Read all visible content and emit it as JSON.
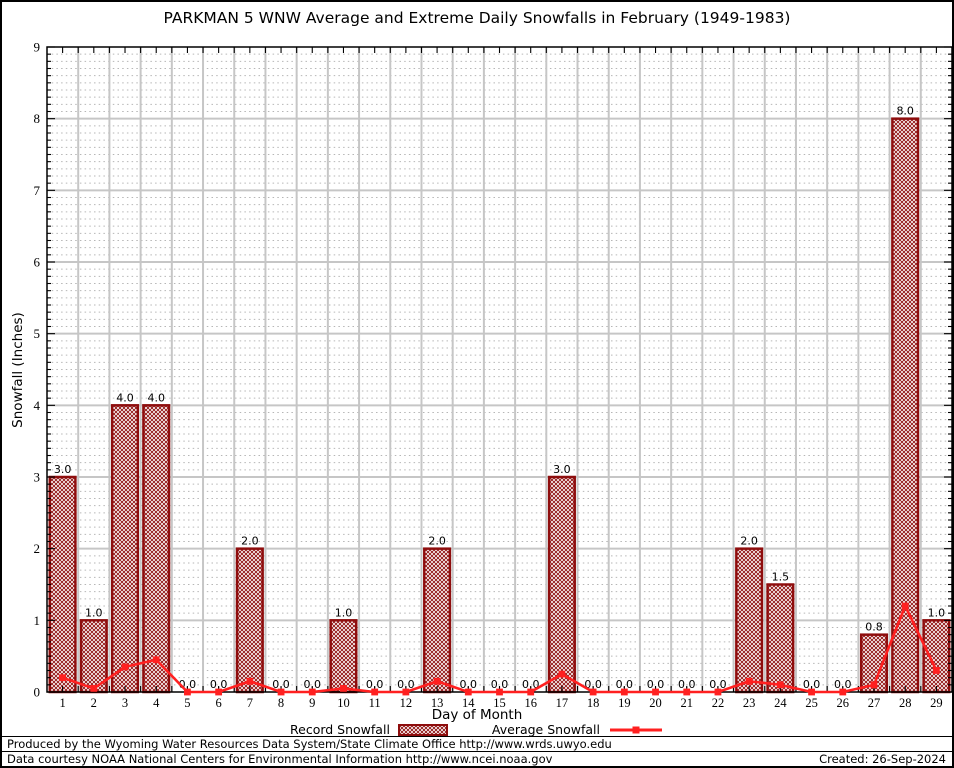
{
  "title": "PARKMAN 5 WNW Average and Extreme Daily Snowfalls in February (1949-1983)",
  "chart_data": {
    "type": "bar",
    "title": "PARKMAN 5 WNW Average and Extreme Daily Snowfalls in February (1949-1983)",
    "xlabel": "Day of Month",
    "ylabel": "Snowfall (Inches)",
    "ylim": [
      0,
      9
    ],
    "ytick_step": 1,
    "ytick_minor_step": 0.1,
    "ytick_labels": [
      "0",
      "1",
      "2",
      "3",
      "4",
      "5",
      "6",
      "7",
      "8",
      "9"
    ],
    "categories": [
      "1",
      "2",
      "3",
      "4",
      "5",
      "6",
      "7",
      "8",
      "9",
      "10",
      "11",
      "12",
      "13",
      "14",
      "15",
      "16",
      "17",
      "18",
      "19",
      "20",
      "21",
      "22",
      "23",
      "24",
      "25",
      "26",
      "27",
      "28",
      "29"
    ],
    "grid": "horizontal major solid, minor dotted; vertical solid at day boundaries",
    "legend_position": "bottom-center",
    "series": [
      {
        "name": "Record Snowfall",
        "type": "bar",
        "values": [
          3,
          1,
          4,
          4,
          0,
          0,
          2,
          0,
          0,
          1,
          0,
          0,
          2,
          0,
          0,
          0,
          3,
          0,
          0,
          0,
          0,
          0,
          2,
          1.5,
          0,
          0,
          0.8,
          8,
          1
        ],
        "labels": [
          "3.0",
          "1.0",
          "4.0",
          "4.0",
          "0.0",
          "0.0",
          "2.0",
          "0.0",
          "0.0",
          "1.0",
          "0.0",
          "0.0",
          "2.0",
          "0.0",
          "0.0",
          "0.0",
          "3.0",
          "0.0",
          "0.0",
          "0.0",
          "0.0",
          "0.0",
          "2.0",
          "1.5",
          "0.0",
          "0.0",
          "0.8",
          "8.0",
          "1.0"
        ]
      },
      {
        "name": "Average Snowfall",
        "type": "line",
        "values": [
          0.2,
          0.05,
          0.35,
          0.45,
          0,
          0,
          0.15,
          0,
          0,
          0.05,
          0,
          0,
          0.15,
          0,
          0,
          0,
          0.25,
          0,
          0,
          0,
          0,
          0,
          0.15,
          0.1,
          0,
          0,
          0.1,
          1.2,
          0.3
        ]
      }
    ],
    "colors": {
      "bar_border": "#8e0d0d",
      "bar_hatch": "#8e0d0d",
      "line": "#ff2020",
      "grid_major": "#c6c6c6",
      "grid_minor": "#b6b6b6",
      "axis": "#000000",
      "label_text": "#000000"
    }
  },
  "legend": {
    "record_label": "Record Snowfall",
    "average_label": "Average Snowfall"
  },
  "footer": {
    "produced_by": "Produced by the Wyoming Water Resources Data System/State Climate Office http://www.wrds.uwyo.edu",
    "data_courtesy": "Data courtesy NOAA National Centers for Environmental Information http://www.ncei.noaa.gov",
    "created": "Created: 26-Sep-2024"
  }
}
